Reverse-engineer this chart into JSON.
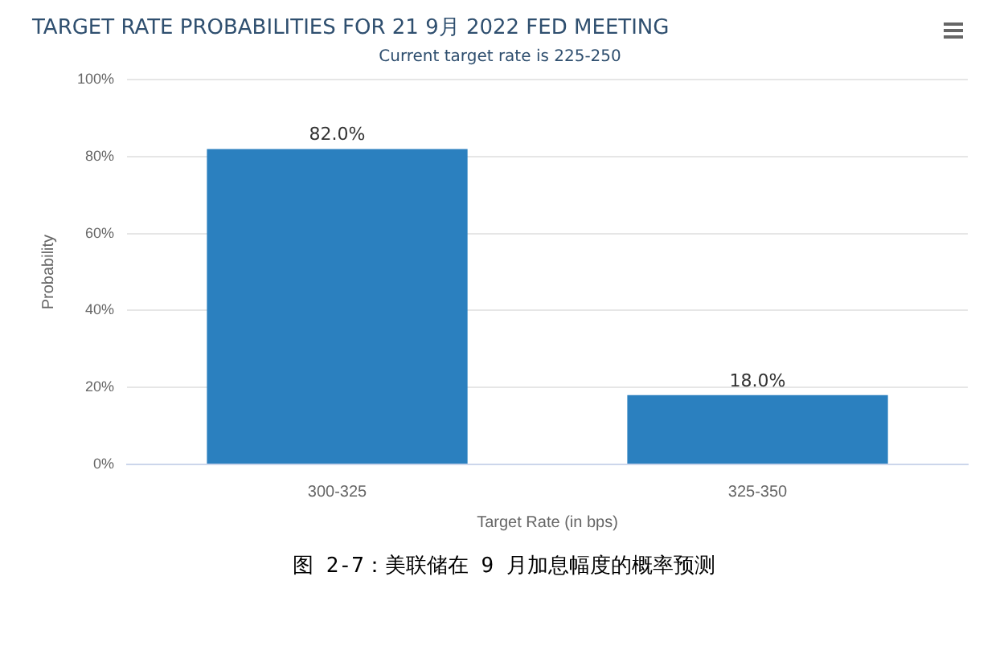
{
  "chart_data": {
    "type": "bar",
    "title": "TARGET RATE PROBABILITIES FOR 21 9月 2022 FED MEETING",
    "subtitle": "Current target rate is 225-250",
    "xlabel": "Target Rate (in bps)",
    "ylabel": "Probability",
    "categories": [
      "300-325",
      "325-350"
    ],
    "values": [
      82.0,
      18.0
    ],
    "value_labels": [
      "82.0%",
      "18.0%"
    ],
    "color": "#2b80bf",
    "ylim": [
      0,
      100
    ],
    "yticks": [
      {
        "value": 0,
        "label": "0%"
      },
      {
        "value": 20,
        "label": "20%"
      },
      {
        "value": 40,
        "label": "40%"
      },
      {
        "value": 60,
        "label": "60%"
      },
      {
        "value": 80,
        "label": "80%"
      },
      {
        "value": 100,
        "label": "100%"
      }
    ],
    "grid": "y",
    "legend": false,
    "annotations": [
      "图 2-7：美联储在 9 月加息幅度的概率预测"
    ]
  }
}
